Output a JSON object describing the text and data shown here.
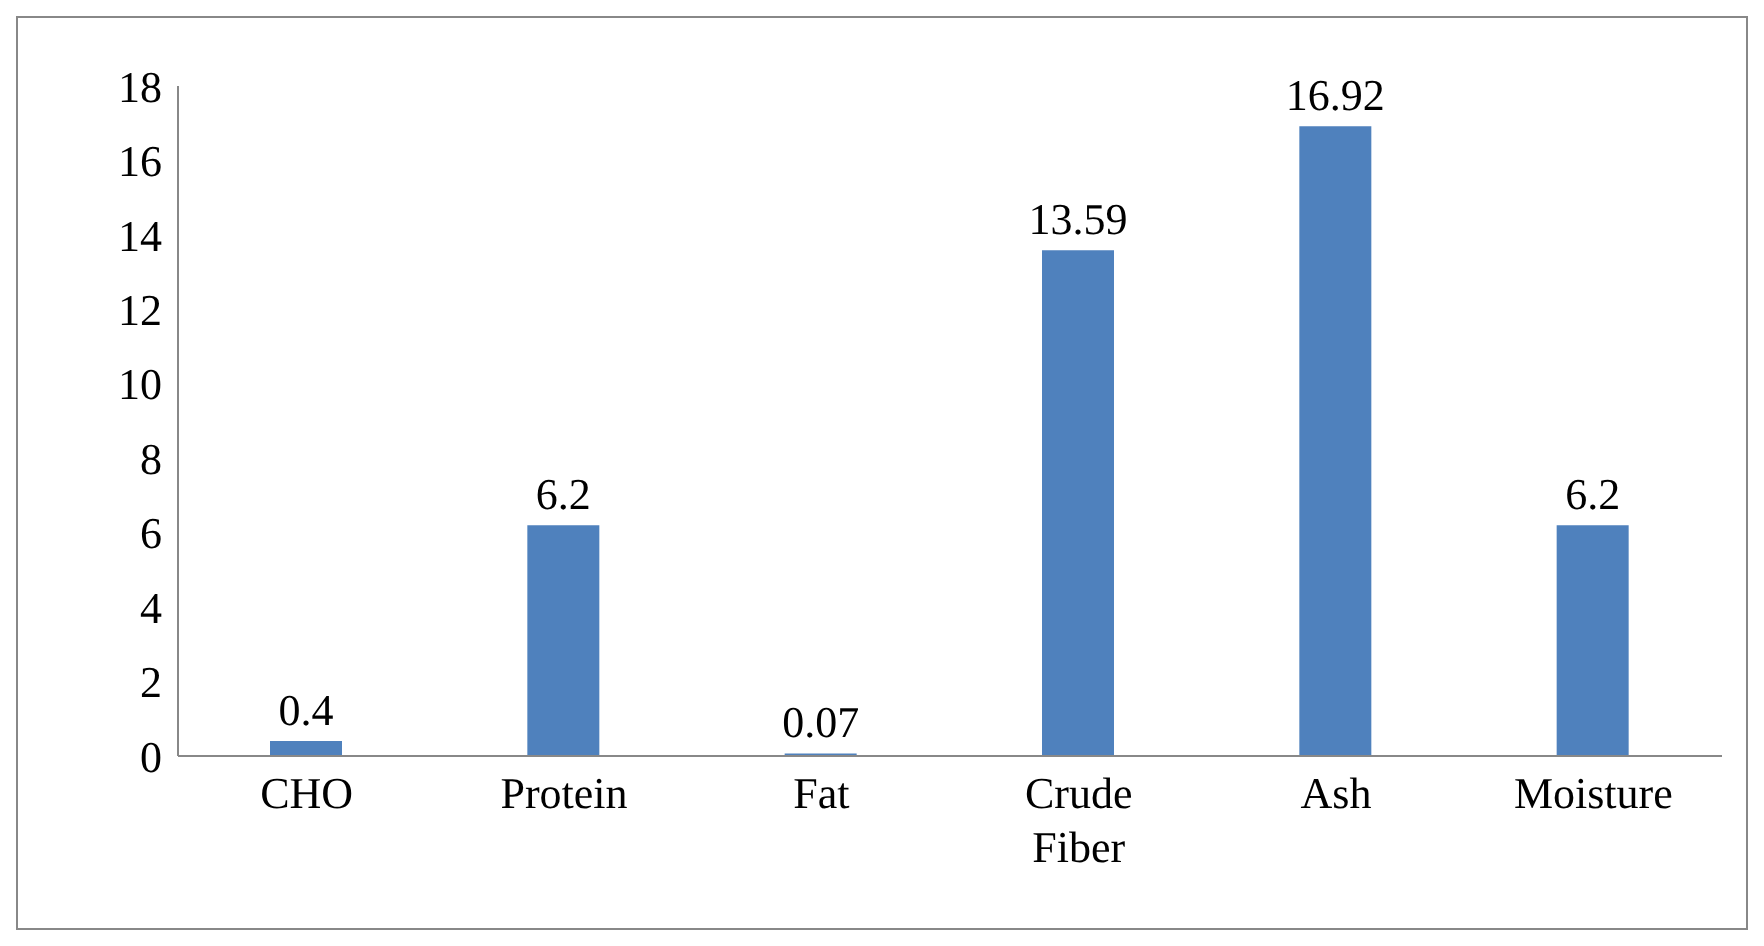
{
  "chart_data": {
    "type": "bar",
    "categories": [
      "CHO",
      "Protein",
      "Fat",
      "Crude Fiber",
      "Ash",
      "Moisture"
    ],
    "values": [
      0.4,
      6.2,
      0.07,
      13.59,
      16.92,
      6.2
    ],
    "color": "#4f81bd",
    "ylim": [
      0,
      18
    ],
    "yticks": [
      0,
      2,
      4,
      6,
      8,
      10,
      12,
      14,
      16,
      18
    ],
    "grid": false,
    "legend": false,
    "data_labels": true
  }
}
